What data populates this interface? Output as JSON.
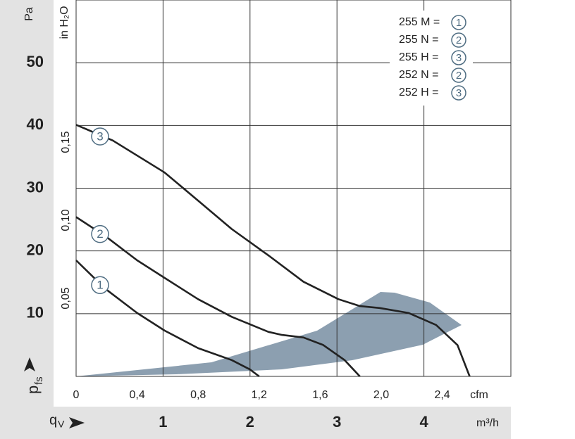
{
  "chart_data": {
    "type": "line",
    "y_unit": "Pa",
    "y2_unit": "in H₂O",
    "x_unit": "cfm",
    "x2_unit": "m³/h",
    "y_label": {
      "main": "p",
      "sub": "fs"
    },
    "x_label": {
      "main": "q",
      "sub": "V"
    },
    "xlim": [
      0,
      2.85
    ],
    "xticks": [
      0,
      {
        "value": 0.4,
        "label": "0,4"
      },
      {
        "value": 0.8,
        "label": "0,8"
      },
      {
        "value": 1.2,
        "label": "1,2"
      },
      {
        "value": 1.6,
        "label": "1,6"
      },
      {
        "value": 2.0,
        "label": "2,0"
      },
      {
        "value": 2.4,
        "label": "2,4"
      }
    ],
    "x2lim": [
      0,
      5
    ],
    "x2ticks": [
      1,
      2,
      3,
      4
    ],
    "ylim": [
      0,
      60
    ],
    "yticks": [
      10,
      20,
      30,
      40,
      50
    ],
    "y2lim": [
      0,
      0.241
    ],
    "y2ticks": [
      {
        "value": 0.05,
        "label": "0,05"
      },
      {
        "value": 0.1,
        "label": "0,10"
      },
      {
        "value": 0.15,
        "label": "0,15"
      }
    ],
    "grid": true,
    "area_color": "#8c9fb0",
    "series": [
      {
        "name": "1",
        "color": "#222222",
        "x": [
          0,
          0.19,
          0.4,
          0.58,
          0.8,
          1.02,
          1.14,
          1.2
        ],
        "values": [
          18.5,
          14.0,
          10.1,
          7.3,
          4.5,
          2.6,
          1.1,
          0
        ]
      },
      {
        "name": "2",
        "color": "#222222",
        "x": [
          0,
          0.19,
          0.4,
          0.58,
          0.8,
          1.02,
          1.26,
          1.35,
          1.49,
          1.62,
          1.76,
          1.86
        ],
        "values": [
          25.4,
          22.4,
          18.5,
          15.7,
          12.3,
          9.5,
          7.1,
          6.6,
          6.2,
          5.0,
          2.6,
          0
        ]
      },
      {
        "name": "3",
        "color": "#222222",
        "x": [
          0,
          0.24,
          0.58,
          0.8,
          1.02,
          1.26,
          1.49,
          1.72,
          1.86,
          1.99,
          2.18,
          2.36,
          2.5,
          2.58
        ],
        "values": [
          40.1,
          37.6,
          32.5,
          28.0,
          23.5,
          19.3,
          15.1,
          12.3,
          11.2,
          10.9,
          10.1,
          8.2,
          5.0,
          0
        ]
      }
    ],
    "legend": [
      {
        "model": "255 M =",
        "curve": "1"
      },
      {
        "model": "255 N =",
        "curve": "2"
      },
      {
        "model": "255 H =",
        "curve": "3"
      },
      {
        "model": "252 N =",
        "curve": "2"
      },
      {
        "model": "252 H =",
        "curve": "3"
      }
    ]
  }
}
